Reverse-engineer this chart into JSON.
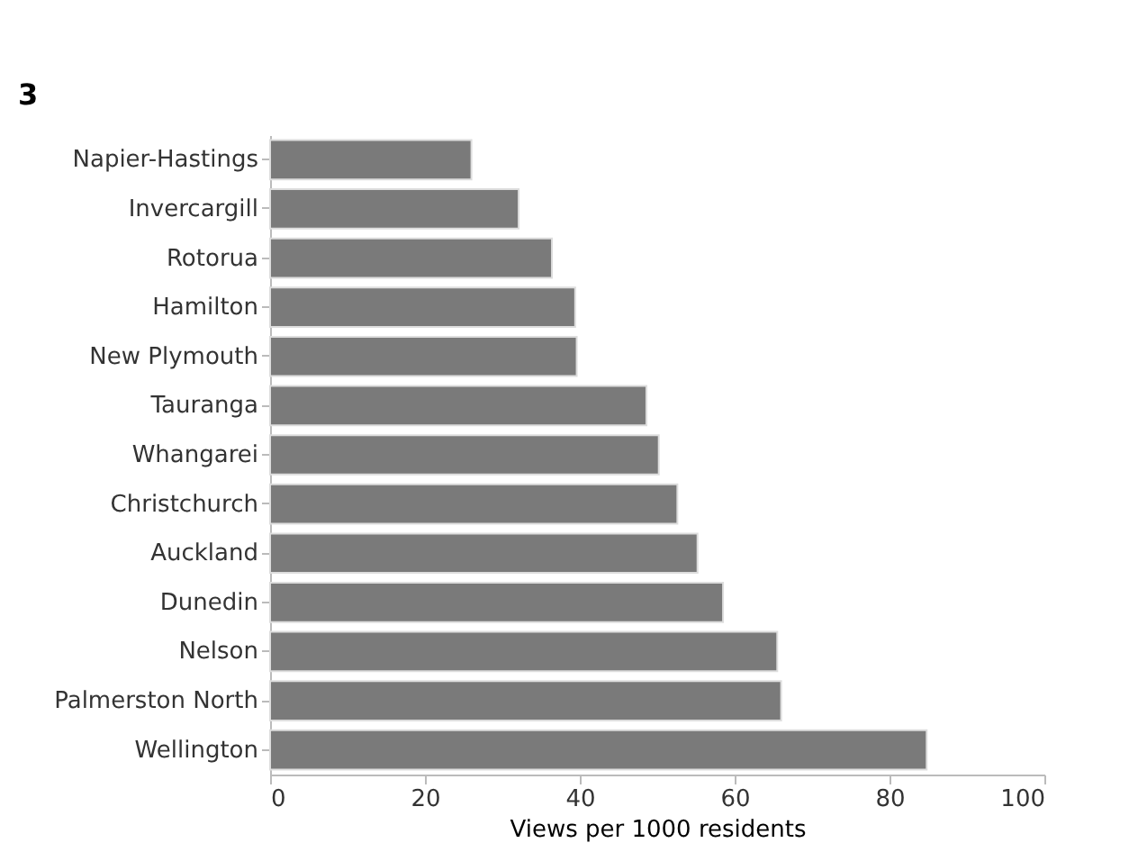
{
  "chart_data": {
    "type": "bar",
    "orientation": "horizontal",
    "xlabel": "Views per 1000 residents",
    "categories": [
      "Napier-Hastings",
      "Invercargill",
      "Rotorua",
      "Hamilton",
      "New Plymouth",
      "Tauranga",
      "Whangarei",
      "Christchurch",
      "Auckland",
      "Dunedin",
      "Nelson",
      "Palmerston North",
      "Wellington"
    ],
    "values": [
      26.0,
      32.1,
      36.4,
      39.4,
      39.6,
      48.6,
      50.2,
      52.6,
      55.2,
      58.5,
      65.5,
      66.0,
      84.8
    ],
    "color": "#7a7a7a",
    "xlim": [
      0,
      100
    ],
    "xticks": [
      0,
      20,
      40,
      60,
      80,
      100
    ],
    "grid": false,
    "annotations": [
      "3"
    ]
  }
}
